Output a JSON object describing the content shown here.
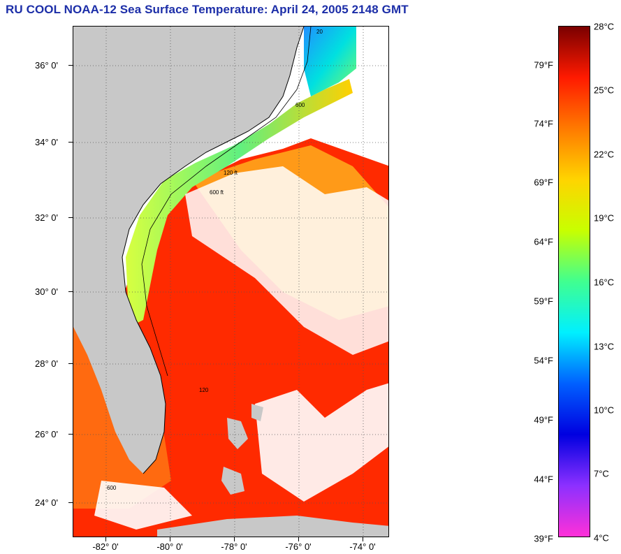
{
  "title": "RU COOL  NOAA-12  Sea Surface Temperature:  April 24, 2005 2148 GMT",
  "map": {
    "lat_labels": [
      {
        "text": "36° 0'",
        "lat": 36
      },
      {
        "text": "34° 0'",
        "lat": 34
      },
      {
        "text": "32° 0'",
        "lat": 32
      },
      {
        "text": "30° 0'",
        "lat": 30
      },
      {
        "text": "28° 0'",
        "lat": 28
      },
      {
        "text": "26° 0'",
        "lat": 26
      },
      {
        "text": "24° 0'",
        "lat": 24
      }
    ],
    "lon_labels": [
      {
        "text": "-82° 0'",
        "lon": -82
      },
      {
        "text": "-80° 0'",
        "lon": -80
      },
      {
        "text": "-78° 0'",
        "lon": -78
      },
      {
        "text": "-76° 0'",
        "lon": -76
      },
      {
        "text": "-74° 0'",
        "lon": -74
      }
    ],
    "land_color": "#c8c8c8",
    "cloud_color": "#ffffff",
    "contour_labels": [
      "20",
      "120",
      "600",
      "120 ft",
      "600 ft",
      "600"
    ]
  },
  "colorbar": {
    "fahrenheit_labels": [
      "79°F",
      "74°F",
      "69°F",
      "64°F",
      "59°F",
      "54°F",
      "49°F",
      "44°F",
      "39°F"
    ],
    "celsius_labels": [
      "28°C",
      "25°C",
      "22°C",
      "19°C",
      "16°C",
      "13°C",
      "10°C",
      "7°C",
      "4°C"
    ],
    "colors": [
      "#7a0000",
      "#ff1a00",
      "#ff7a00",
      "#ffd400",
      "#c8ff00",
      "#40ff90",
      "#00f0ff",
      "#0060ff",
      "#0000e0",
      "#8c30ff",
      "#ff30d8"
    ]
  }
}
